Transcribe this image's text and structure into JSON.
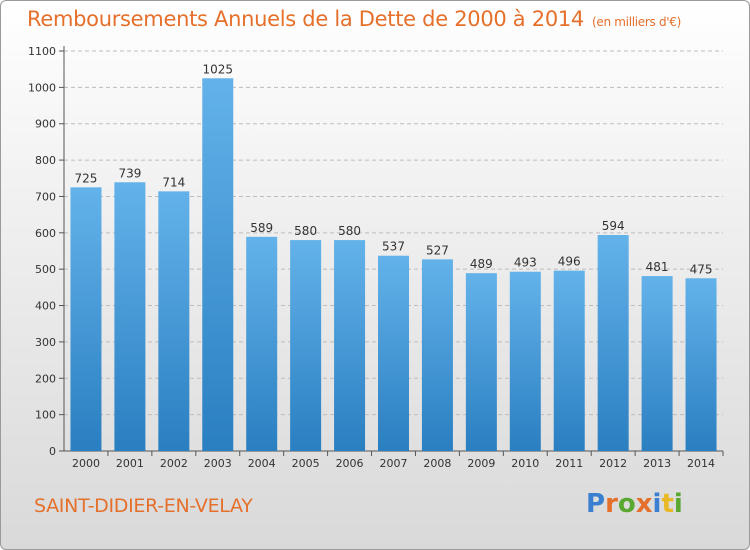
{
  "title": "Remboursements Annuels de la Dette de 2000 à 2014",
  "unit": "(en milliers d'€)",
  "city": "SAINT-DIDIER-EN-VELAY",
  "brand": {
    "letters": [
      "P",
      "r",
      "o",
      "x",
      "i",
      "t",
      "i"
    ],
    "colors": [
      "#3a7fd0",
      "#e5702b",
      "#5aa832",
      "#e5702b",
      "#3a7fd0",
      "#e8b825",
      "#5aa832"
    ]
  },
  "colors": {
    "bar_light": "#63b2ea",
    "bar_dark": "#2a7fc1",
    "title": "#e5702b",
    "grid": "#bdbdbd"
  },
  "chart_data": {
    "type": "bar",
    "title": "Remboursements Annuels de la Dette de 2000 à 2014",
    "subtitle": "(en milliers d'€)",
    "categories": [
      "2000",
      "2001",
      "2002",
      "2003",
      "2004",
      "2005",
      "2006",
      "2007",
      "2008",
      "2009",
      "2010",
      "2011",
      "2012",
      "2013",
      "2014"
    ],
    "values": [
      725,
      739,
      714,
      1025,
      589,
      580,
      580,
      537,
      527,
      489,
      493,
      496,
      594,
      481,
      475
    ],
    "ylim": [
      0,
      1100
    ],
    "yticks": [
      0,
      100,
      200,
      300,
      400,
      500,
      600,
      700,
      800,
      900,
      1000,
      1100
    ],
    "grid": true,
    "xlabel": "",
    "ylabel": ""
  }
}
